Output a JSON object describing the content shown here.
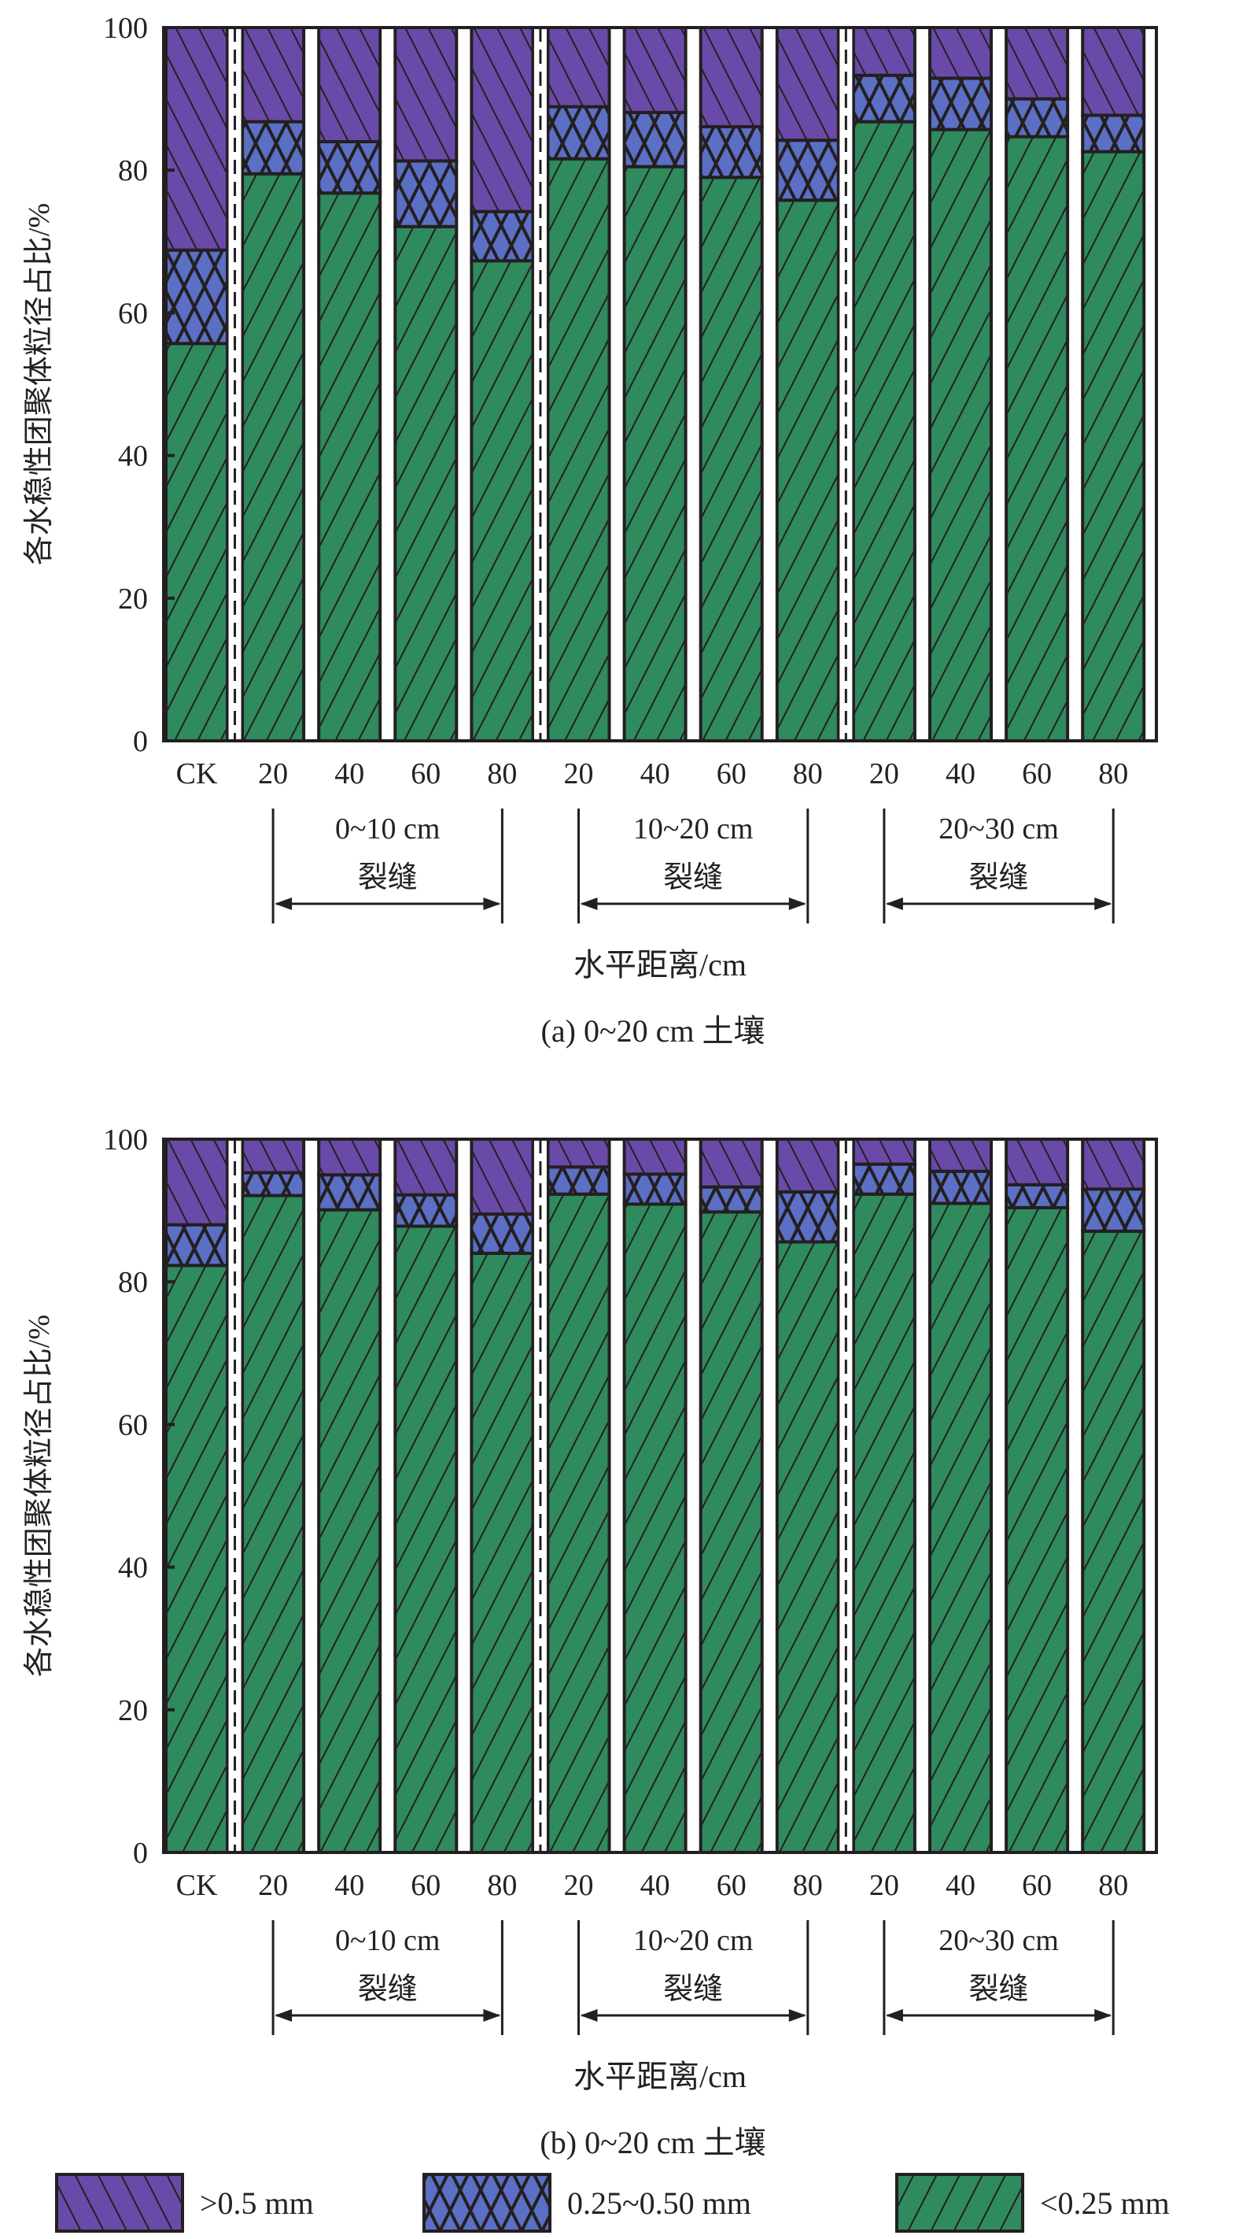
{
  "colors": {
    "large": "#6a4aa8",
    "mid": "#5b6fc4",
    "small": "#2f8a5e",
    "outline": "#231f20"
  },
  "legend": [
    {
      "key": "large",
      "label": ">0.5 mm"
    },
    {
      "key": "mid",
      "label": "0.25~0.50 mm"
    },
    {
      "key": "small",
      "label": "<0.25 mm"
    }
  ],
  "chart_data": [
    {
      "type": "bar",
      "stacked": true,
      "caption": "(a) 0~20 cm 土壤",
      "xlabel": "水平距离/cm",
      "ylabel": "各水稳性团聚体粒径占比/%",
      "ylim": [
        0,
        100
      ],
      "yticks": [
        0,
        20,
        40,
        60,
        80,
        100
      ],
      "categories": [
        "CK",
        "20",
        "40",
        "60",
        "80",
        "20",
        "40",
        "60",
        "80",
        "20",
        "40",
        "60",
        "80"
      ],
      "groups": [
        {
          "label": "0~10 cm",
          "sublabel": "裂缝"
        },
        {
          "label": "10~20 cm",
          "sublabel": "裂缝"
        },
        {
          "label": "20~30 cm",
          "sublabel": "裂缝"
        }
      ],
      "series": [
        {
          "name": "<0.25 mm",
          "key": "small",
          "values": [
            55.7,
            79.5,
            76.8,
            72.1,
            67.3,
            81.6,
            80.5,
            79.0,
            75.8,
            86.8,
            85.7,
            84.7,
            82.6
          ]
        },
        {
          "name": "0.25~0.50 mm",
          "key": "mid",
          "values": [
            13.1,
            7.3,
            7.2,
            9.2,
            6.9,
            7.3,
            7.6,
            7.1,
            8.4,
            6.5,
            7.2,
            5.3,
            5.1
          ]
        },
        {
          "name": ">0.5 mm",
          "key": "large",
          "values": [
            31.2,
            13.2,
            16.0,
            18.7,
            25.8,
            11.1,
            11.9,
            13.9,
            15.8,
            6.7,
            7.1,
            10.0,
            12.3
          ]
        }
      ]
    },
    {
      "type": "bar",
      "stacked": true,
      "caption": "(b) 0~20 cm 土壤",
      "xlabel": "水平距离/cm",
      "ylabel": "各水稳性团聚体粒径占比/%",
      "ylim": [
        0,
        100
      ],
      "yticks": [
        0,
        20,
        40,
        60,
        80,
        100
      ],
      "categories": [
        "CK",
        "20",
        "40",
        "60",
        "80",
        "20",
        "40",
        "60",
        "80",
        "20",
        "40",
        "60",
        "80"
      ],
      "groups": [
        {
          "label": "0~10 cm",
          "sublabel": "裂缝"
        },
        {
          "label": "10~20 cm",
          "sublabel": "裂缝"
        },
        {
          "label": "20~30 cm",
          "sublabel": "裂缝"
        }
      ],
      "series": [
        {
          "name": "<0.25 mm",
          "key": "small",
          "values": [
            82.3,
            92.1,
            90.1,
            87.8,
            84.0,
            92.3,
            90.9,
            89.8,
            85.6,
            92.3,
            91.0,
            90.4,
            87.1
          ]
        },
        {
          "name": "0.25~0.50 mm",
          "key": "mid",
          "values": [
            5.7,
            3.2,
            4.9,
            4.4,
            5.5,
            3.8,
            4.2,
            3.5,
            7.0,
            4.2,
            4.5,
            3.2,
            5.9
          ]
        },
        {
          "name": ">0.5 mm",
          "key": "large",
          "values": [
            12.0,
            4.7,
            5.0,
            7.8,
            10.5,
            3.9,
            4.9,
            6.7,
            7.4,
            3.5,
            4.5,
            6.4,
            7.0
          ]
        }
      ]
    }
  ]
}
